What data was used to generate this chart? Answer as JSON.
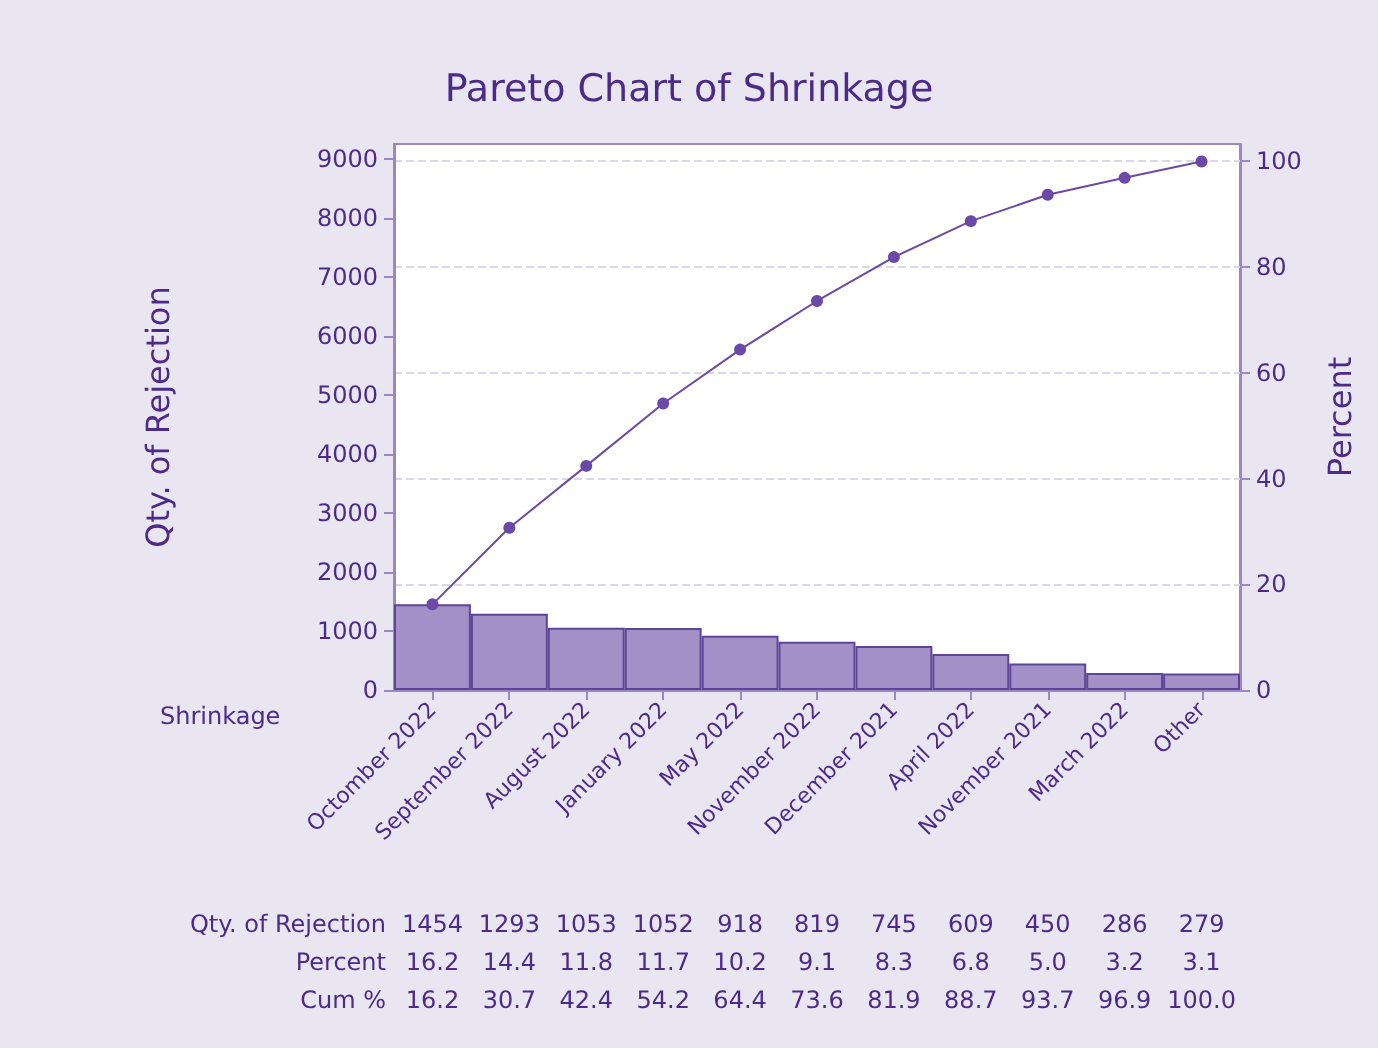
{
  "chart_data": {
    "type": "bar",
    "title": "Pareto Chart of Shrinkage",
    "xlabel": "Shrinkage",
    "ylabel": "Qty. of Rejection",
    "y2label": "Percent",
    "categories": [
      "Octomber 2022",
      "September 2022",
      "August 2022",
      "January 2022",
      "May 2022",
      "November 2022",
      "December 2021",
      "April 2022",
      "November 2021",
      "March 2022",
      "Other"
    ],
    "series": [
      {
        "color": "#a390c6",
        "values": [
          1454,
          1293,
          1053,
          1052,
          918,
          819,
          745,
          609,
          450,
          286,
          279
        ],
        "value_labels": [
          "1454",
          "1293",
          "1053",
          "1052",
          "918",
          "819",
          "745",
          "609",
          "450",
          "286",
          "279"
        ]
      },
      {
        "type": "line",
        "axis": "y2",
        "color": "#6a4aa6",
        "values": [
          16.2,
          30.7,
          42.4,
          54.2,
          64.4,
          73.6,
          81.9,
          88.7,
          93.7,
          96.9,
          100.0
        ]
      }
    ],
    "annotations": [
      "Qty. of Rejection",
      "Percent",
      "16.2",
      "14.4",
      "11.8",
      "11.7",
      "10.2",
      "9.1",
      "8.3",
      "6.8",
      "5.0",
      "3.2",
      "3.1",
      "Cum %",
      "16.2",
      "30.7",
      "42.4",
      "54.2",
      "64.4",
      "73.6",
      "81.9",
      "88.7",
      "93.7",
      "96.9",
      "100.0"
    ],
    "ylim": [
      0,
      9250
    ],
    "yticks": [
      0,
      1000,
      2000,
      3000,
      4000,
      5000,
      6000,
      7000,
      8000,
      9000
    ],
    "y2lim": [
      0,
      103.3
    ],
    "y2ticks": [
      0,
      20,
      40,
      60,
      80,
      100
    ],
    "grid": "y",
    "marker": "circle"
  }
}
